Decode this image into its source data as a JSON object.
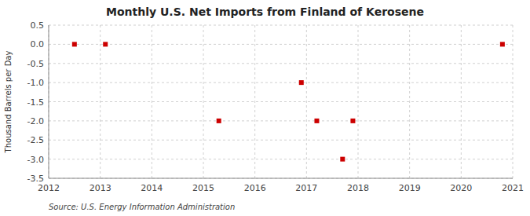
{
  "chart_data": {
    "type": "scatter",
    "title": "Monthly U.S. Net Imports from Finland of Kerosene",
    "y_label": "Thousand Barrels per Day",
    "source": "Source: U.S. Energy Information Administration",
    "x": [
      2012.5,
      2013.1,
      2015.3,
      2016.9,
      2017.2,
      2017.7,
      2017.9,
      2020.8
    ],
    "values": [
      0,
      0,
      -2,
      -1,
      -2,
      -3,
      -2,
      0
    ],
    "color": "#cc0000",
    "marker": "square",
    "xlim": [
      2012,
      2021
    ],
    "ylim": [
      -3.5,
      0.5
    ],
    "xticks": [
      2012,
      2013,
      2014,
      2015,
      2016,
      2017,
      2018,
      2019,
      2020,
      2021
    ],
    "yticks": [
      0.5,
      {
        "value": 0,
        "label": "0.0"
      },
      -0.5,
      {
        "value": -1,
        "label": "-1.0"
      },
      -1.5,
      {
        "value": -2,
        "label": "-2.0"
      },
      -2.5,
      {
        "value": -3,
        "label": "-3.0"
      },
      -3.5
    ],
    "grid": true
  }
}
